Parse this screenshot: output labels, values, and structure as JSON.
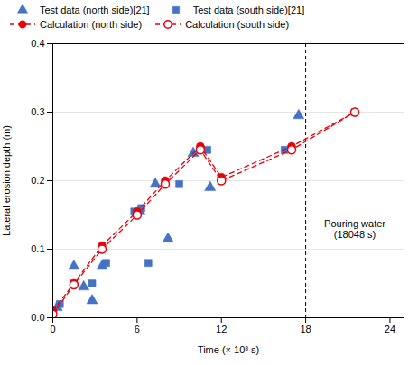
{
  "chart_data": {
    "type": "scatter",
    "title": "",
    "xlabel": "Time (× 10³ s)",
    "ylabel": "Lateral erosion depth (m)",
    "xlim": [
      0,
      25
    ],
    "ylim": [
      0,
      0.4
    ],
    "xticks": [
      0,
      6,
      12,
      18,
      24
    ],
    "yticks": [
      {
        "value": 0.0,
        "label": "0.0"
      },
      0.1,
      0.2,
      0.3,
      0.4
    ],
    "grid": "y",
    "legend": "top",
    "series": [
      {
        "name": "Test data (north side)[21]",
        "type": "scatter",
        "marker": "triangle",
        "color": "#4472C4",
        "x": [
          0.3,
          1.5,
          2.2,
          2.8,
          3.5,
          6.2,
          7.3,
          8.2,
          10.0,
          11.2,
          17.5
        ],
        "values": [
          0.015,
          0.075,
          0.045,
          0.025,
          0.075,
          0.155,
          0.195,
          0.115,
          0.24,
          0.19,
          0.295
        ]
      },
      {
        "name": "Test data (south side)[21]",
        "type": "scatter",
        "marker": "square",
        "color": "#4472C4",
        "x": [
          0.5,
          1.5,
          2.8,
          3.8,
          5.8,
          6.3,
          6.8,
          9.0,
          11.0,
          16.5,
          21.5
        ],
        "values": [
          0.02,
          0.05,
          0.05,
          0.08,
          0.155,
          0.16,
          0.08,
          0.195,
          0.245,
          0.245,
          0.3
        ]
      },
      {
        "name": "Calculation (north side)",
        "type": "line",
        "marker": "circle",
        "line_style": "dashed",
        "color": "#E8000A",
        "x": [
          0.0,
          1.5,
          3.5,
          6.0,
          8.0,
          10.5,
          12.0,
          17.0,
          21.5
        ],
        "values": [
          0.01,
          0.05,
          0.105,
          0.155,
          0.2,
          0.25,
          0.205,
          0.25,
          0.3
        ]
      },
      {
        "name": "Calculation (south side)",
        "type": "line",
        "marker": "open_circle",
        "line_style": "dashed",
        "color": "#E8000A",
        "x": [
          0.0,
          1.5,
          3.5,
          6.0,
          8.0,
          10.5,
          12.0,
          17.0,
          21.5
        ],
        "values": [
          0.005,
          0.048,
          0.1,
          0.15,
          0.195,
          0.245,
          0.2,
          0.245,
          0.3
        ]
      }
    ],
    "vlines": [
      18
    ],
    "annotations": [
      {
        "text": "Pouring water\n(18048 s)",
        "x": 21.5,
        "y": 0.13
      }
    ]
  }
}
